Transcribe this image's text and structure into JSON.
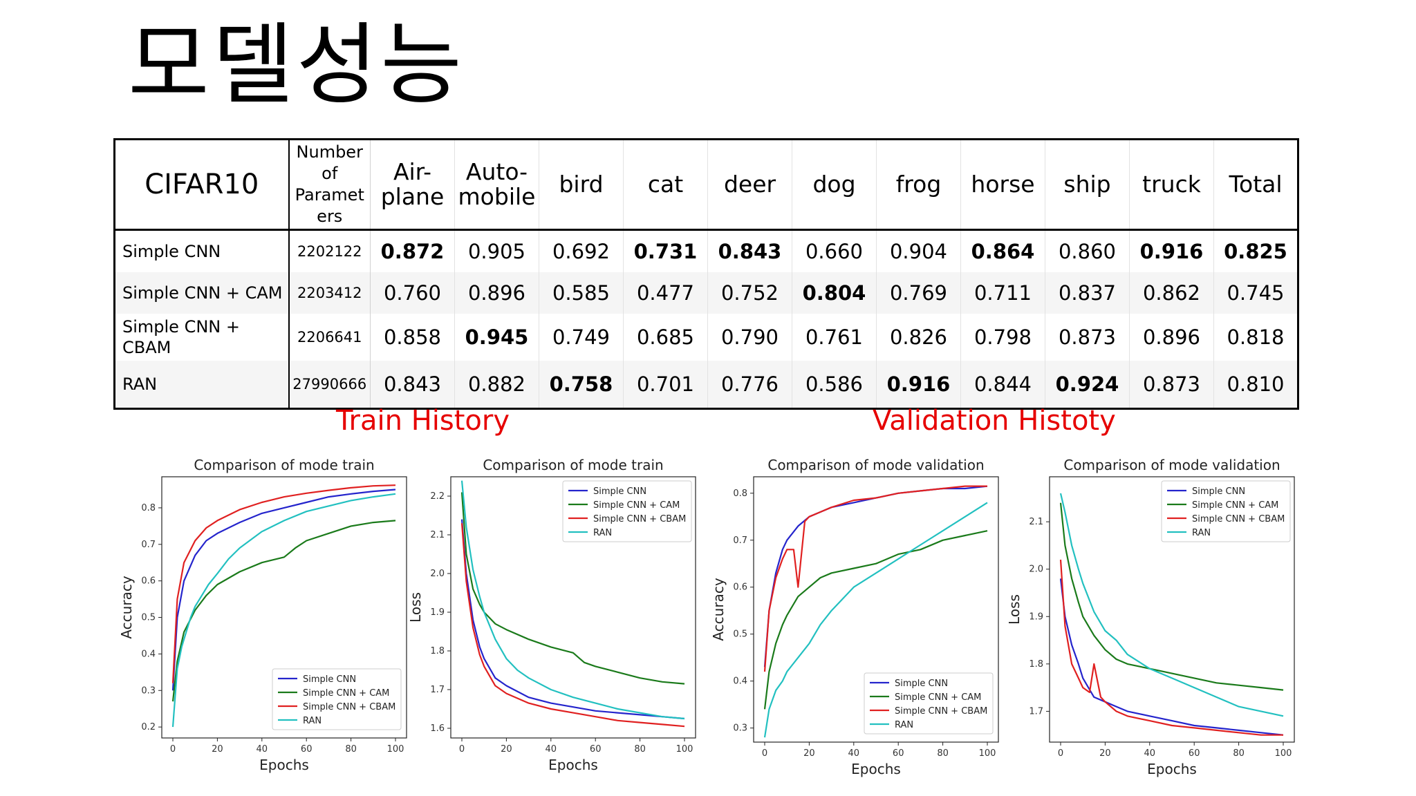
{
  "page": {
    "title": "모델성능"
  },
  "table": {
    "headers": [
      "CIFAR10",
      "Number of Paramet ers",
      "Air-plane",
      "Auto-mobile",
      "bird",
      "cat",
      "deer",
      "dog",
      "frog",
      "horse",
      "ship",
      "truck",
      "Total"
    ],
    "rows": [
      {
        "model": "Simple CNN",
        "params": "2202122",
        "values": [
          "0.872",
          "0.905",
          "0.692",
          "0.731",
          "0.843",
          "0.660",
          "0.904",
          "0.864",
          "0.860",
          "0.916",
          "0.825"
        ]
      },
      {
        "model": "Simple CNN + CAM",
        "params": "2203412",
        "values": [
          "0.760",
          "0.896",
          "0.585",
          "0.477",
          "0.752",
          "0.804",
          "0.769",
          "0.711",
          "0.837",
          "0.862",
          "0.745"
        ]
      },
      {
        "model": "Simple CNN + CBAM",
        "params": "2206641",
        "values": [
          "0.858",
          "0.945",
          "0.749",
          "0.685",
          "0.790",
          "0.761",
          "0.826",
          "0.798",
          "0.873",
          "0.896",
          "0.818"
        ]
      },
      {
        "model": "RAN",
        "params": "27990666",
        "values": [
          "0.843",
          "0.882",
          "0.758",
          "0.701",
          "0.776",
          "0.586",
          "0.916",
          "0.844",
          "0.924",
          "0.873",
          "0.810"
        ]
      }
    ]
  },
  "sections": {
    "train": "Train History",
    "validation": "Validation Histoty"
  },
  "colors": {
    "Simple CNN": "#2424cc",
    "Simple CNN + CAM": "#1a7a1a",
    "Simple CNN + CBAM": "#e02020",
    "RAN": "#22c0c0",
    "section_label": "#e60000"
  },
  "chart_data": [
    {
      "type": "line",
      "title": "Comparison of mode train",
      "xlabel": "Epochs",
      "ylabel": "Accuracy",
      "xlim": [
        0,
        100
      ],
      "ylim": [
        0.17,
        0.885
      ],
      "xticks": [
        0,
        20,
        40,
        60,
        80,
        100
      ],
      "yticks": [
        0.2,
        0.3,
        0.4,
        0.5,
        0.6,
        0.7,
        0.8
      ],
      "legend": "lower-right",
      "series": [
        {
          "name": "Simple CNN",
          "x": [
            0,
            2,
            5,
            10,
            15,
            20,
            30,
            40,
            50,
            60,
            70,
            80,
            90,
            100
          ],
          "y": [
            0.3,
            0.5,
            0.6,
            0.67,
            0.71,
            0.73,
            0.76,
            0.785,
            0.8,
            0.815,
            0.83,
            0.838,
            0.845,
            0.85
          ]
        },
        {
          "name": "Simple CNN + CAM",
          "x": [
            0,
            2,
            5,
            10,
            15,
            20,
            30,
            40,
            50,
            55,
            60,
            70,
            80,
            90,
            100
          ],
          "y": [
            0.27,
            0.38,
            0.46,
            0.52,
            0.56,
            0.59,
            0.625,
            0.65,
            0.665,
            0.69,
            0.71,
            0.73,
            0.75,
            0.76,
            0.765
          ]
        },
        {
          "name": "Simple CNN + CBAM",
          "x": [
            0,
            2,
            5,
            10,
            15,
            20,
            30,
            40,
            50,
            60,
            70,
            80,
            90,
            100
          ],
          "y": [
            0.32,
            0.55,
            0.65,
            0.71,
            0.745,
            0.765,
            0.795,
            0.815,
            0.83,
            0.84,
            0.848,
            0.855,
            0.86,
            0.862
          ]
        },
        {
          "name": "RAN",
          "x": [
            0,
            2,
            4,
            6,
            8,
            10,
            13,
            16,
            20,
            25,
            30,
            40,
            50,
            60,
            70,
            80,
            90,
            100
          ],
          "y": [
            0.2,
            0.36,
            0.42,
            0.46,
            0.5,
            0.53,
            0.56,
            0.59,
            0.62,
            0.66,
            0.69,
            0.735,
            0.765,
            0.79,
            0.805,
            0.82,
            0.83,
            0.838
          ]
        }
      ]
    },
    {
      "type": "line",
      "title": "Comparison of mode train",
      "xlabel": "Epochs",
      "ylabel": "Loss",
      "xlim": [
        0,
        100
      ],
      "ylim": [
        1.575,
        2.25
      ],
      "xticks": [
        0,
        20,
        40,
        60,
        80,
        100
      ],
      "yticks": [
        1.6,
        1.7,
        1.8,
        1.9,
        2.0,
        2.1,
        2.2
      ],
      "legend": "top-right",
      "series": [
        {
          "name": "Simple CNN",
          "x": [
            0,
            2,
            5,
            8,
            10,
            15,
            20,
            30,
            40,
            50,
            60,
            70,
            80,
            90,
            100
          ],
          "y": [
            2.14,
            2.0,
            1.88,
            1.81,
            1.78,
            1.73,
            1.71,
            1.68,
            1.665,
            1.655,
            1.645,
            1.64,
            1.635,
            1.63,
            1.625
          ]
        },
        {
          "name": "Simple CNN + CAM",
          "x": [
            0,
            2,
            5,
            8,
            10,
            15,
            20,
            30,
            40,
            50,
            52,
            55,
            60,
            70,
            80,
            90,
            100
          ],
          "y": [
            2.21,
            2.05,
            1.96,
            1.92,
            1.9,
            1.87,
            1.855,
            1.83,
            1.81,
            1.795,
            1.785,
            1.77,
            1.76,
            1.745,
            1.73,
            1.72,
            1.715
          ]
        },
        {
          "name": "Simple CNN + CBAM",
          "x": [
            0,
            2,
            5,
            8,
            10,
            15,
            20,
            30,
            40,
            50,
            60,
            70,
            80,
            90,
            100
          ],
          "y": [
            2.13,
            1.98,
            1.86,
            1.79,
            1.76,
            1.71,
            1.69,
            1.665,
            1.65,
            1.64,
            1.63,
            1.62,
            1.615,
            1.61,
            1.605
          ]
        },
        {
          "name": "RAN",
          "x": [
            0,
            2,
            5,
            8,
            10,
            15,
            20,
            25,
            30,
            40,
            50,
            60,
            70,
            80,
            90,
            100
          ],
          "y": [
            2.24,
            2.12,
            2.01,
            1.94,
            1.9,
            1.83,
            1.78,
            1.75,
            1.73,
            1.7,
            1.68,
            1.665,
            1.65,
            1.64,
            1.63,
            1.625
          ]
        }
      ]
    },
    {
      "type": "line",
      "title": "Comparison of mode validation",
      "xlabel": "Epochs",
      "ylabel": "Accuracy",
      "xlim": [
        0,
        100
      ],
      "ylim": [
        0.27,
        0.835
      ],
      "xticks": [
        0,
        20,
        40,
        60,
        80,
        100
      ],
      "yticks": [
        0.3,
        0.4,
        0.5,
        0.6,
        0.7,
        0.8
      ],
      "legend": "lower-right",
      "series": [
        {
          "name": "Simple CNN",
          "x": [
            0,
            2,
            5,
            8,
            10,
            15,
            20,
            25,
            30,
            40,
            50,
            60,
            70,
            80,
            90,
            100
          ],
          "y": [
            0.43,
            0.55,
            0.63,
            0.68,
            0.7,
            0.73,
            0.75,
            0.76,
            0.77,
            0.78,
            0.79,
            0.8,
            0.805,
            0.81,
            0.81,
            0.815
          ]
        },
        {
          "name": "Simple CNN + CAM",
          "x": [
            0,
            2,
            5,
            8,
            10,
            15,
            20,
            25,
            30,
            40,
            50,
            60,
            70,
            80,
            90,
            100
          ],
          "y": [
            0.34,
            0.42,
            0.48,
            0.52,
            0.54,
            0.58,
            0.6,
            0.62,
            0.63,
            0.64,
            0.65,
            0.67,
            0.68,
            0.7,
            0.71,
            0.72
          ]
        },
        {
          "name": "Simple CNN + CBAM",
          "x": [
            0,
            2,
            5,
            8,
            10,
            13,
            15,
            18,
            20,
            25,
            30,
            40,
            50,
            60,
            70,
            80,
            90,
            100
          ],
          "y": [
            0.42,
            0.55,
            0.62,
            0.66,
            0.68,
            0.68,
            0.6,
            0.74,
            0.75,
            0.76,
            0.77,
            0.785,
            0.79,
            0.8,
            0.805,
            0.81,
            0.815,
            0.815
          ]
        },
        {
          "name": "RAN",
          "x": [
            0,
            2,
            5,
            8,
            10,
            15,
            20,
            25,
            30,
            40,
            50,
            60,
            70,
            80,
            90,
            100
          ],
          "y": [
            0.28,
            0.34,
            0.38,
            0.4,
            0.42,
            0.45,
            0.48,
            0.52,
            0.55,
            0.6,
            0.63,
            0.66,
            0.69,
            0.72,
            0.75,
            0.78
          ]
        }
      ]
    },
    {
      "type": "line",
      "title": "Comparison of mode validation",
      "xlabel": "Epochs",
      "ylabel": "Loss",
      "xlim": [
        0,
        100
      ],
      "ylim": [
        1.635,
        2.195
      ],
      "xticks": [
        0,
        20,
        40,
        60,
        80,
        100
      ],
      "yticks": [
        1.7,
        1.8,
        1.9,
        2.0,
        2.1
      ],
      "legend": "top-right",
      "series": [
        {
          "name": "Simple CNN",
          "x": [
            0,
            2,
            5,
            8,
            10,
            15,
            20,
            25,
            30,
            40,
            50,
            60,
            70,
            80,
            90,
            100
          ],
          "y": [
            1.98,
            1.9,
            1.84,
            1.8,
            1.77,
            1.73,
            1.72,
            1.71,
            1.7,
            1.69,
            1.68,
            1.67,
            1.665,
            1.66,
            1.655,
            1.65
          ]
        },
        {
          "name": "Simple CNN + CAM",
          "x": [
            0,
            2,
            5,
            8,
            10,
            15,
            20,
            25,
            30,
            40,
            50,
            60,
            70,
            80,
            90,
            100
          ],
          "y": [
            2.14,
            2.05,
            1.98,
            1.93,
            1.9,
            1.86,
            1.83,
            1.81,
            1.8,
            1.79,
            1.78,
            1.77,
            1.76,
            1.755,
            1.75,
            1.745
          ]
        },
        {
          "name": "Simple CNN + CBAM",
          "x": [
            0,
            2,
            5,
            8,
            10,
            13,
            15,
            18,
            20,
            25,
            30,
            40,
            50,
            60,
            70,
            80,
            90,
            100
          ],
          "y": [
            2.02,
            1.88,
            1.8,
            1.77,
            1.75,
            1.74,
            1.8,
            1.73,
            1.72,
            1.7,
            1.69,
            1.68,
            1.67,
            1.665,
            1.66,
            1.655,
            1.65,
            1.65
          ]
        },
        {
          "name": "RAN",
          "x": [
            0,
            2,
            5,
            8,
            10,
            15,
            20,
            25,
            30,
            40,
            50,
            60,
            70,
            80,
            90,
            100
          ],
          "y": [
            2.16,
            2.12,
            2.05,
            2.0,
            1.97,
            1.91,
            1.87,
            1.85,
            1.82,
            1.79,
            1.77,
            1.75,
            1.73,
            1.71,
            1.7,
            1.69
          ]
        }
      ]
    }
  ]
}
